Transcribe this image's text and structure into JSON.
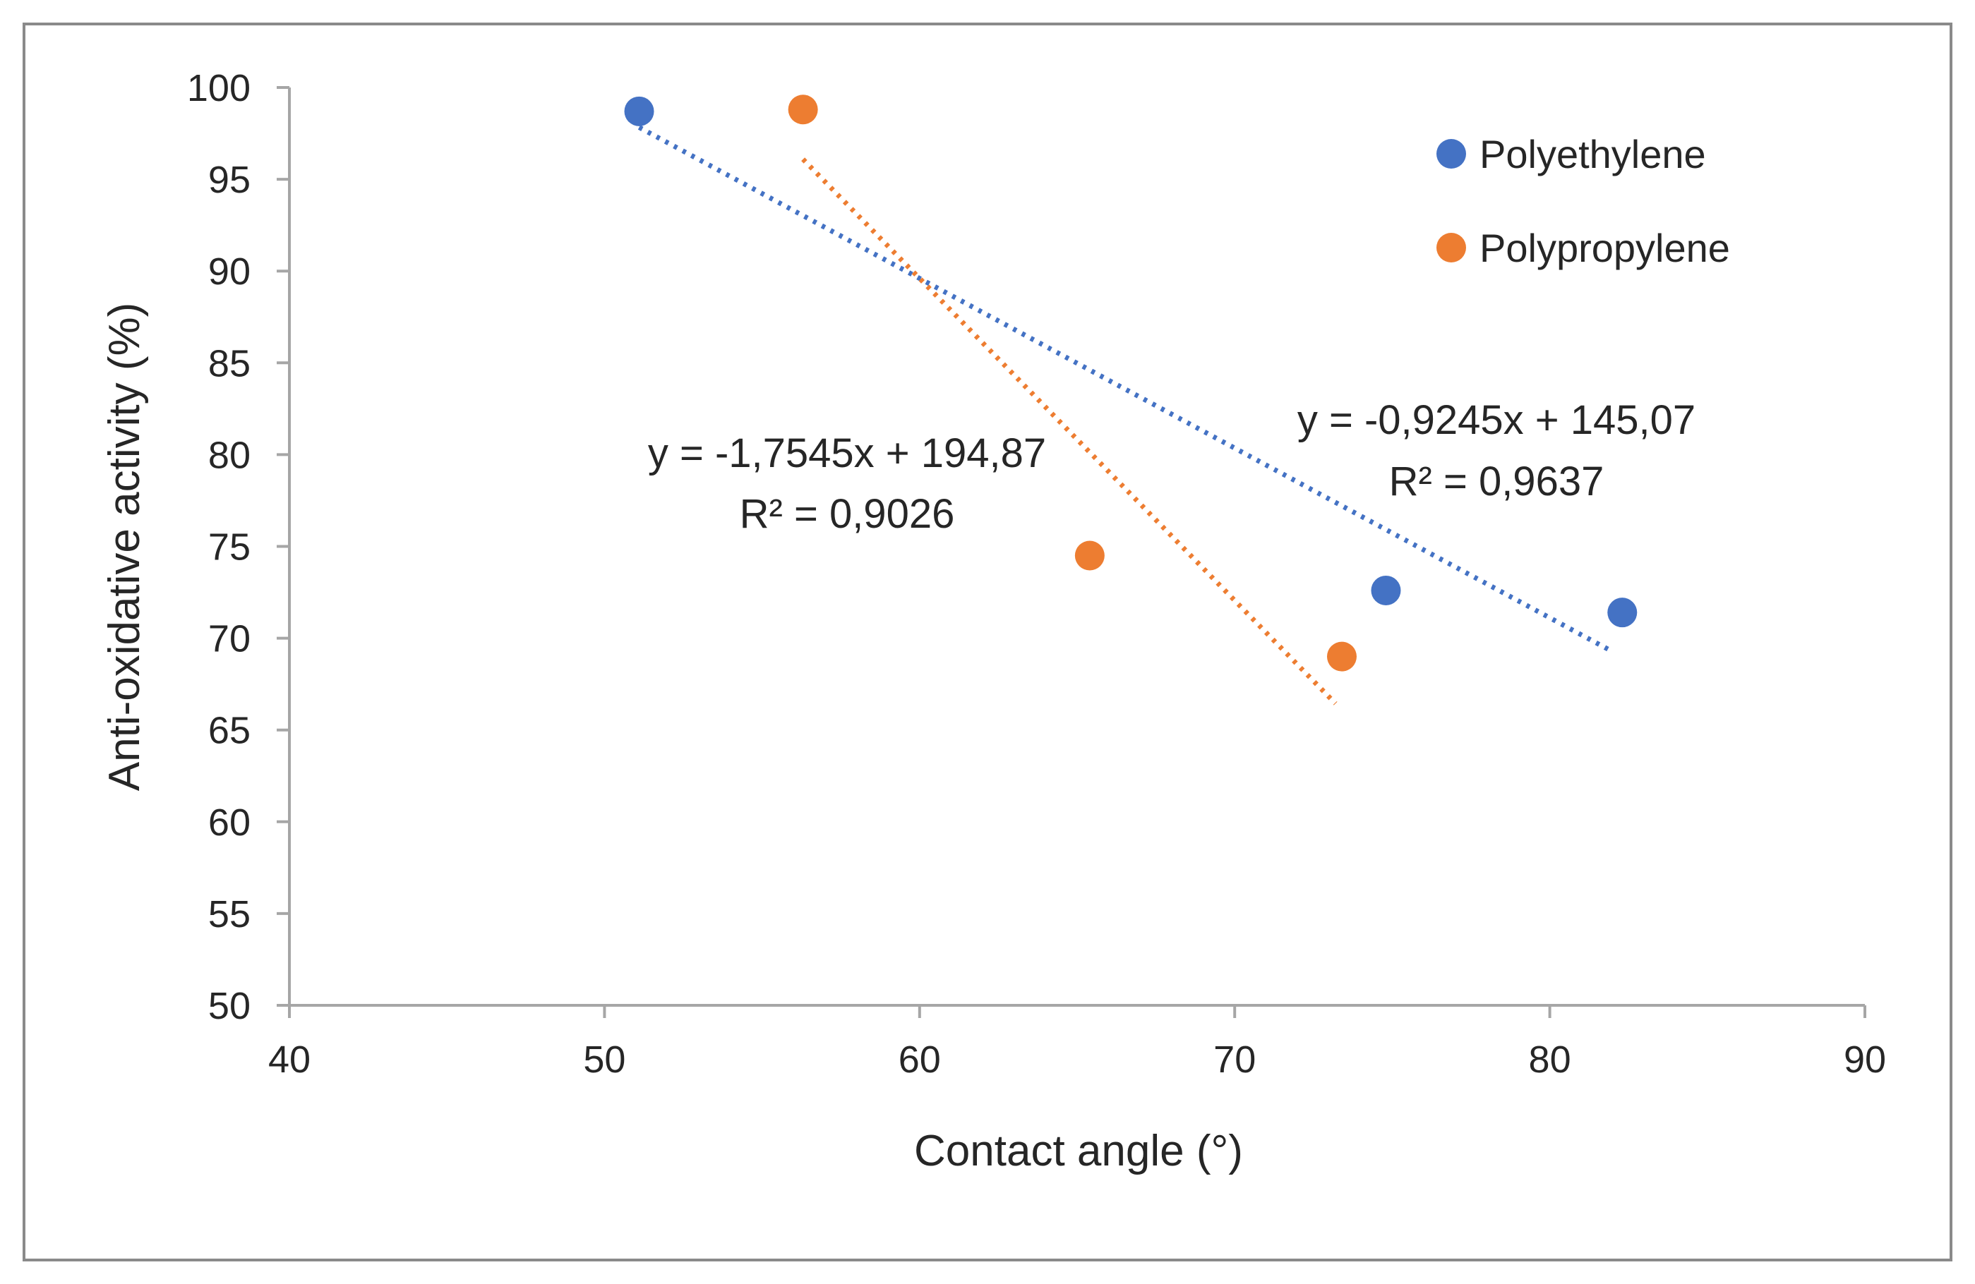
{
  "chart_data": {
    "type": "scatter",
    "title": "",
    "xlabel": "Contact angle (°)",
    "ylabel": "Anti-oxidative activity (%)",
    "xlim": [
      40,
      90
    ],
    "ylim": [
      50,
      100
    ],
    "xticks": [
      40,
      50,
      60,
      70,
      80,
      90
    ],
    "yticks": [
      50,
      55,
      60,
      65,
      70,
      75,
      80,
      85,
      90,
      95,
      100
    ],
    "grid": false,
    "legend_position": "top-right",
    "series": [
      {
        "name": "Polyethylene",
        "color": "#4472c4",
        "points": [
          [
            51.1,
            98.7
          ],
          [
            74.8,
            72.6
          ],
          [
            82.3,
            71.4
          ]
        ],
        "trendline": {
          "style": "dotted",
          "equation": "y = -0,9245x + 145,07",
          "r2": "R² = 0,9637",
          "x_range": [
            51.1,
            82.0
          ],
          "slope": -0.9245,
          "intercept": 145.07
        }
      },
      {
        "name": "Polypropylene",
        "color": "#ed7d31",
        "points": [
          [
            56.3,
            98.8
          ],
          [
            65.4,
            74.5
          ],
          [
            73.4,
            69.0
          ]
        ],
        "trendline": {
          "style": "dotted",
          "equation": "y = -1,7545x + 194,87",
          "r2": "R² = 0,9026",
          "x_range": [
            56.3,
            73.2
          ],
          "slope": -1.7545,
          "intercept": 194.87
        }
      }
    ]
  }
}
